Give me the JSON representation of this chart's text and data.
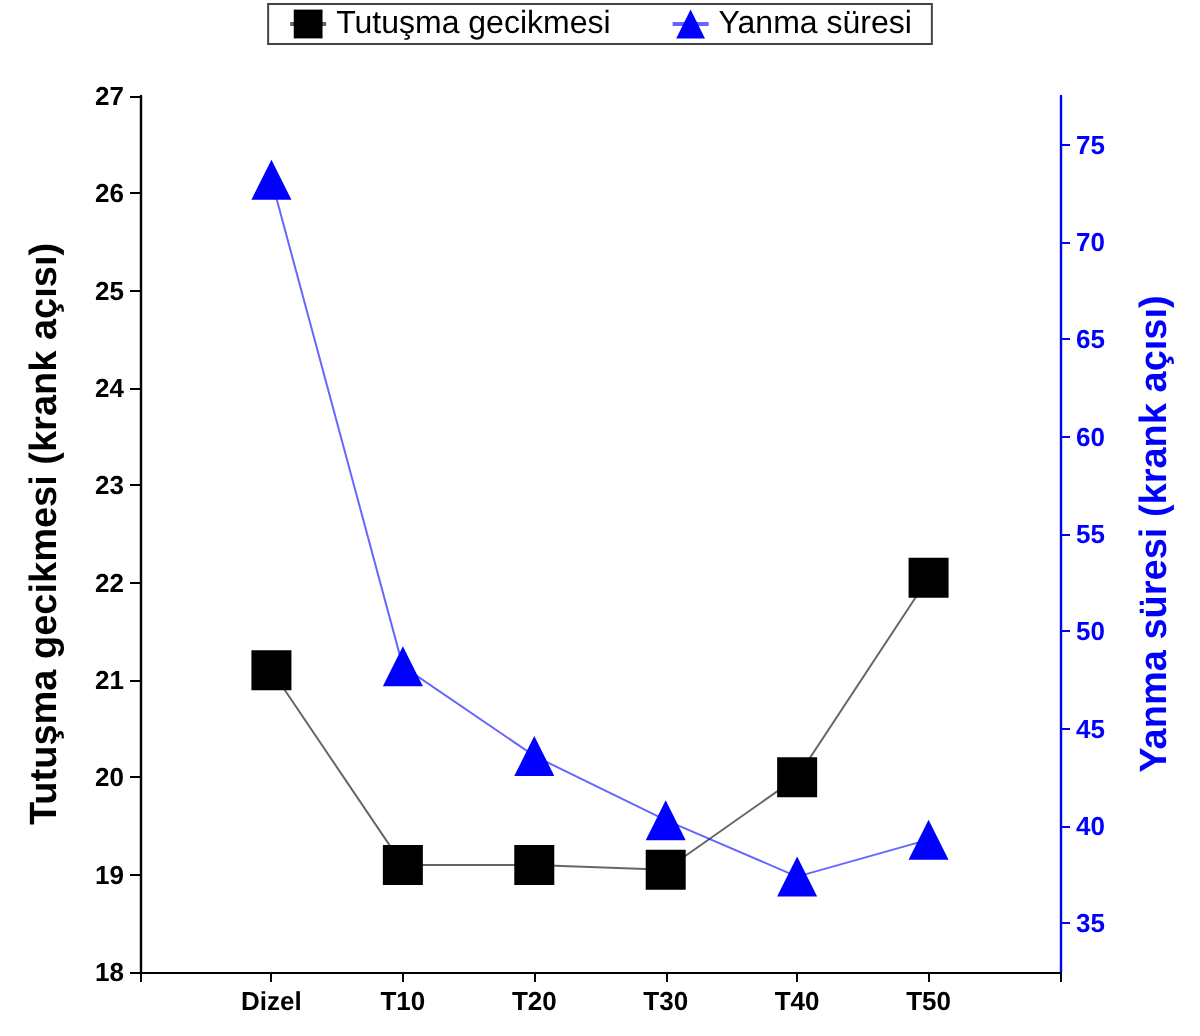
{
  "chart_data": {
    "type": "line",
    "categories": [
      null,
      "Dizel",
      "T10",
      "T20",
      "T30",
      "T40",
      "T50",
      null
    ],
    "ylabel": "Tutuşma gecikmesi (krank açısı)",
    "y2label": "Yanma süresi (krank açısı)",
    "series": [
      {
        "name": "Tutuşma gecikmesi",
        "color": "#000000",
        "marker": "square",
        "values": [
          null,
          21.1,
          19.1,
          19.1,
          19.05,
          20.0,
          22.05,
          null
        ]
      },
      {
        "name": "Yanma süresi",
        "color": "#0000ff",
        "marker": "triangle",
        "axis": "y2",
        "values": [
          null,
          73.2,
          48.2,
          43.6,
          40.3,
          37.4,
          39.3,
          null
        ]
      }
    ],
    "ylim": [
      18,
      27
    ],
    "yticks": [
      18,
      19,
      20,
      21,
      22,
      23,
      24,
      25,
      26,
      27
    ],
    "y2lim": [
      32.5,
      77.5
    ],
    "y2ticks": [
      35,
      40,
      45,
      50,
      55,
      60,
      65,
      70,
      75
    ],
    "legend": "top",
    "grid": false
  }
}
